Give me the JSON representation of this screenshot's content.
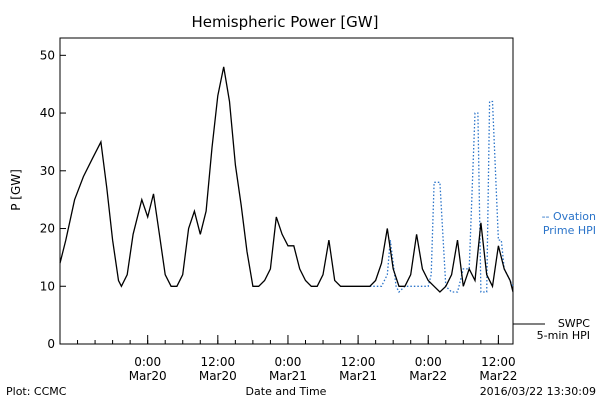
{
  "chart_data": {
    "type": "line",
    "title": "Hemispheric Power [GW]",
    "ylabel": "P [GW]",
    "xlabel": "Date and Time",
    "ylim": [
      0,
      53
    ],
    "xlim": [
      "2016-03-19 09:00",
      "2016-03-22 14:30"
    ],
    "yticks": [
      0,
      10,
      20,
      30,
      40,
      50
    ],
    "xticks": [
      {
        "x": "2016-03-20 00:00",
        "line1": "0:00",
        "line2": "Mar20"
      },
      {
        "x": "2016-03-20 12:00",
        "line1": "12:00",
        "line2": "Mar20"
      },
      {
        "x": "2016-03-21 00:00",
        "line1": "0:00",
        "line2": "Mar21"
      },
      {
        "x": "2016-03-21 12:00",
        "line1": "12:00",
        "line2": "Mar21"
      },
      {
        "x": "2016-03-22 00:00",
        "line1": "0:00",
        "line2": "Mar22"
      },
      {
        "x": "2016-03-22 12:00",
        "line1": "12:00",
        "line2": "Mar22"
      }
    ],
    "grid": false,
    "series": [
      {
        "name": "SWPC 5-min HPI",
        "style": "solid",
        "color": "#000000",
        "x": [
          "2016-03-19 09:00",
          "2016-03-19 10:00",
          "2016-03-19 11:30",
          "2016-03-19 13:00",
          "2016-03-19 14:30",
          "2016-03-19 16:00",
          "2016-03-19 17:00",
          "2016-03-19 18:00",
          "2016-03-19 19:00",
          "2016-03-19 19:30",
          "2016-03-19 20:30",
          "2016-03-19 21:30",
          "2016-03-19 23:00",
          "2016-03-20 00:00",
          "2016-03-20 01:00",
          "2016-03-20 02:00",
          "2016-03-20 03:00",
          "2016-03-20 04:00",
          "2016-03-20 05:00",
          "2016-03-20 06:00",
          "2016-03-20 07:00",
          "2016-03-20 08:00",
          "2016-03-20 09:00",
          "2016-03-20 10:00",
          "2016-03-20 11:00",
          "2016-03-20 12:00",
          "2016-03-20 13:00",
          "2016-03-20 14:00",
          "2016-03-20 15:00",
          "2016-03-20 16:00",
          "2016-03-20 17:00",
          "2016-03-20 18:00",
          "2016-03-20 19:00",
          "2016-03-20 20:00",
          "2016-03-20 21:00",
          "2016-03-20 22:00",
          "2016-03-20 23:00",
          "2016-03-21 00:00",
          "2016-03-21 01:00",
          "2016-03-21 02:00",
          "2016-03-21 03:00",
          "2016-03-21 04:00",
          "2016-03-21 05:00",
          "2016-03-21 06:00",
          "2016-03-21 07:00",
          "2016-03-21 08:00",
          "2016-03-21 09:00",
          "2016-03-21 10:00",
          "2016-03-21 11:00",
          "2016-03-21 12:00",
          "2016-03-21 13:00",
          "2016-03-21 14:00",
          "2016-03-21 15:00",
          "2016-03-21 16:00",
          "2016-03-21 17:00",
          "2016-03-21 18:00",
          "2016-03-21 19:00",
          "2016-03-21 20:00",
          "2016-03-21 21:00",
          "2016-03-21 22:00",
          "2016-03-21 23:00",
          "2016-03-22 00:00",
          "2016-03-22 01:00",
          "2016-03-22 02:00",
          "2016-03-22 03:00",
          "2016-03-22 04:00",
          "2016-03-22 05:00",
          "2016-03-22 06:00",
          "2016-03-22 07:00",
          "2016-03-22 08:00",
          "2016-03-22 09:00",
          "2016-03-22 10:00",
          "2016-03-22 11:00",
          "2016-03-22 12:00",
          "2016-03-22 13:00",
          "2016-03-22 14:00",
          "2016-03-22 14:30"
        ],
        "y": [
          14,
          18,
          25,
          29,
          32,
          35,
          27,
          18,
          11,
          10,
          12,
          19,
          25,
          22,
          26,
          19,
          12,
          10,
          10,
          12,
          20,
          23,
          19,
          23,
          34,
          43,
          48,
          42,
          31,
          24,
          16,
          10,
          10,
          11,
          13,
          22,
          19,
          17,
          17,
          13,
          11,
          10,
          10,
          12,
          18,
          11,
          10,
          10,
          10,
          10,
          10,
          10,
          11,
          14,
          20,
          13,
          10,
          10,
          12,
          19,
          13,
          11,
          10,
          9,
          10,
          12,
          18,
          10,
          13,
          11,
          21,
          12,
          10,
          17,
          13,
          11,
          9
        ]
      },
      {
        "name": "Ovation Prime HPI",
        "style": "dotted",
        "color": "#2b74c9",
        "x": [
          "2016-03-21 14:00",
          "2016-03-21 15:00",
          "2016-03-21 16:00",
          "2016-03-21 17:00",
          "2016-03-21 17:30",
          "2016-03-21 18:30",
          "2016-03-21 19:00",
          "2016-03-21 20:00",
          "2016-03-21 21:00",
          "2016-03-21 22:00",
          "2016-03-21 23:00",
          "2016-03-22 00:00",
          "2016-03-22 00:30",
          "2016-03-22 01:00",
          "2016-03-22 02:00",
          "2016-03-22 03:00",
          "2016-03-22 04:00",
          "2016-03-22 05:00",
          "2016-03-22 06:00",
          "2016-03-22 07:00",
          "2016-03-22 08:00",
          "2016-03-22 08:30",
          "2016-03-22 09:00",
          "2016-03-22 10:00",
          "2016-03-22 10:30",
          "2016-03-22 11:00",
          "2016-03-22 12:00",
          "2016-03-22 12:30",
          "2016-03-22 13:00",
          "2016-03-22 14:00",
          "2016-03-22 14:30"
        ],
        "y": [
          10,
          10,
          10,
          12,
          18,
          10,
          9,
          10,
          10,
          10,
          10,
          10,
          12,
          28,
          28,
          10,
          9,
          9,
          13,
          13,
          40,
          40,
          9,
          9,
          42,
          42,
          18,
          18,
          13,
          11,
          10
        ]
      }
    ],
    "legend": [
      {
        "label_line1": "-- Ovation",
        "label_line2": "Prime HPI",
        "placement": "right-middle"
      },
      {
        "label_line1": "SWPC",
        "label_line2": "5-min HPI",
        "placement": "right-bottom"
      }
    ]
  },
  "footer": {
    "plot_credit": "Plot: CCMC",
    "x_axis_title": "Date and Time",
    "timestamp": "2016/03/22 13:30:09"
  },
  "colors": {
    "swpc": "#000000",
    "ovation": "#2b74c9",
    "background": "#ffffff"
  }
}
